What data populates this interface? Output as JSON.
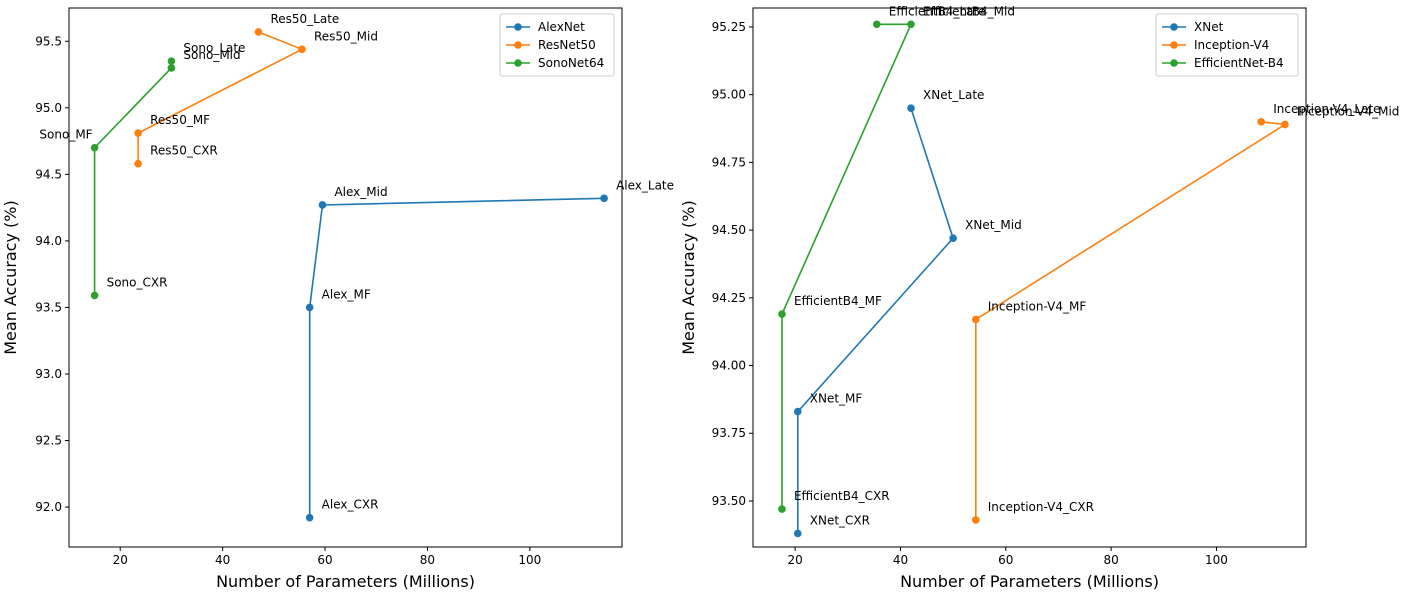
{
  "chart_data": [
    {
      "type": "line",
      "xlabel": "Number of Parameters (Millions)",
      "ylabel": "Mean Accuracy (%)",
      "xlim": [
        10,
        118
      ],
      "ylim": [
        91.7,
        95.75
      ],
      "xticks": [
        20,
        40,
        60,
        80,
        100
      ],
      "yticks": [
        92.0,
        92.5,
        93.0,
        93.5,
        94.0,
        94.5,
        95.0,
        95.5
      ],
      "legend_position": "top-right",
      "series": [
        {
          "name": "AlexNet",
          "color": "#1f77b4",
          "points": [
            {
              "x": 57,
              "y": 91.92,
              "label": "Alex_CXR",
              "label_side": "right"
            },
            {
              "x": 57,
              "y": 93.5,
              "label": "Alex_MF",
              "label_side": "right"
            },
            {
              "x": 59.5,
              "y": 94.27,
              "label": "Alex_Mid",
              "label_side": "right"
            },
            {
              "x": 114.5,
              "y": 94.32,
              "label": "Alex_Late",
              "label_side": "right"
            }
          ]
        },
        {
          "name": "ResNet50",
          "color": "#ff7f0e",
          "points": [
            {
              "x": 23.5,
              "y": 94.58,
              "label": "Res50_CXR",
              "label_side": "right"
            },
            {
              "x": 23.5,
              "y": 94.81,
              "label": "Res50_MF",
              "label_side": "right"
            },
            {
              "x": 55.5,
              "y": 95.44,
              "label": "Res50_Mid",
              "label_side": "right"
            },
            {
              "x": 47,
              "y": 95.57,
              "label": "Res50_Late",
              "label_side": "right"
            }
          ]
        },
        {
          "name": "SonoNet64",
          "color": "#2ca02c",
          "points": [
            {
              "x": 15,
              "y": 93.59,
              "label": "Sono_CXR",
              "label_side": "right"
            },
            {
              "x": 15,
              "y": 94.7,
              "label": "Sono_MF",
              "label_side": "left"
            },
            {
              "x": 30,
              "y": 95.3,
              "label": "Sono_Mid",
              "label_side": "right"
            },
            {
              "x": 30,
              "y": 95.35,
              "label": "Sono_Late",
              "label_side": "right"
            }
          ]
        }
      ]
    },
    {
      "type": "line",
      "xlabel": "Number of Parameters (Millions)",
      "ylabel": "Mean Accuracy (%)",
      "xlim": [
        12,
        117
      ],
      "ylim": [
        93.33,
        95.32
      ],
      "xticks": [
        20,
        40,
        60,
        80,
        100
      ],
      "yticks": [
        93.5,
        93.75,
        94.0,
        94.25,
        94.5,
        94.75,
        95.0,
        95.25
      ],
      "ytick_labels": [
        "93.50",
        "93.75",
        "94.00",
        "94.25",
        "94.50",
        "94.75",
        "95.00",
        "95.25"
      ],
      "legend_position": "top-right",
      "series": [
        {
          "name": "XNet",
          "color": "#1f77b4",
          "points": [
            {
              "x": 20.5,
              "y": 93.38,
              "label": "XNet_CXR",
              "label_side": "right"
            },
            {
              "x": 20.5,
              "y": 93.83,
              "label": "XNet_MF",
              "label_side": "right"
            },
            {
              "x": 50,
              "y": 94.47,
              "label": "XNet_Mid",
              "label_side": "right"
            },
            {
              "x": 42,
              "y": 94.95,
              "label": "XNet_Late",
              "label_side": "right"
            }
          ]
        },
        {
          "name": "Inception-V4",
          "color": "#ff7f0e",
          "points": [
            {
              "x": 54.3,
              "y": 93.43,
              "label": "Inception-V4_CXR",
              "label_side": "right"
            },
            {
              "x": 54.3,
              "y": 94.17,
              "label": "Inception-V4_MF",
              "label_side": "right"
            },
            {
              "x": 113,
              "y": 94.89,
              "label": "Inception-V4_Mid",
              "label_side": "right"
            },
            {
              "x": 108.5,
              "y": 94.9,
              "label": "Inception-V4_Late",
              "label_side": "right"
            }
          ]
        },
        {
          "name": "EfficientNet-B4",
          "color": "#2ca02c",
          "points": [
            {
              "x": 17.5,
              "y": 93.47,
              "label": "EfficientB4_CXR",
              "label_side": "right"
            },
            {
              "x": 17.5,
              "y": 94.19,
              "label": "EfficientB4_MF",
              "label_side": "right"
            },
            {
              "x": 42,
              "y": 95.26,
              "label": "EfficientB4_Mid",
              "label_side": "right"
            },
            {
              "x": 35.5,
              "y": 95.26,
              "label": "EfficientB4_Late",
              "label_side": "right"
            }
          ]
        }
      ]
    }
  ]
}
